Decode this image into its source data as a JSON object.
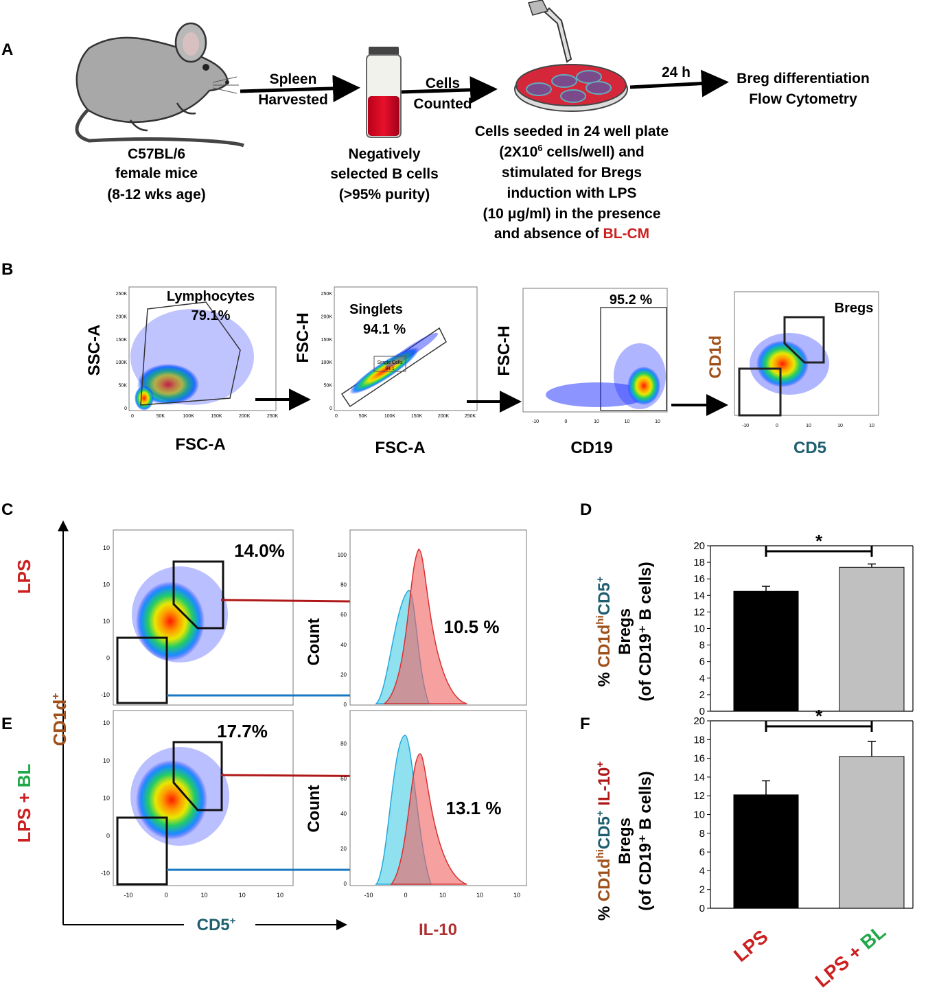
{
  "panels": {
    "A": "A",
    "B": "B",
    "C": "C",
    "D": "D",
    "E": "E",
    "F": "F"
  },
  "panel_a": {
    "mouse_lines": [
      "C57BL/6",
      "female mice",
      "(8-12 wks age)"
    ],
    "arrow1_lines": [
      "Spleen",
      "Harvested"
    ],
    "tube_lines": [
      "Negatively",
      "selected  B cells",
      "(>95% purity)"
    ],
    "arrow2_lines": [
      "Cells",
      "Counted"
    ],
    "dish_lines": [
      "Cells seeded in 24 well plate",
      "(2X10",
      "6",
      " cells/well) and",
      "stimulated for Bregs",
      "induction with LPS",
      "(10 μg/ml) in the presence",
      "and absence of ",
      "BL-CM"
    ],
    "arrow3_label": "24 h",
    "result_lines": [
      "Breg differentiation",
      "Flow Cytometry"
    ]
  },
  "panel_b": {
    "plot1": {
      "ylabel": "SSC-A",
      "xlabel": "FSC-A",
      "gate_name": "Lymphocytes",
      "gate_value": "79.1%",
      "yticks": [
        "250K",
        "200K",
        "150K",
        "100K",
        "50K",
        "0"
      ],
      "xticks": [
        "0",
        "50K",
        "100K",
        "150K",
        "200K",
        "250K"
      ]
    },
    "plot2": {
      "ylabel": "FSC-H",
      "xlabel": "FSC-A",
      "gate_name": "Singlets",
      "gate_value": "94.1 %",
      "inner_label": "Single Cells",
      "inner_value": "94.1",
      "yticks": [
        "250K",
        "200K",
        "150K",
        "100K",
        "50K",
        "0"
      ],
      "xticks": [
        "0",
        "50K",
        "100K",
        "150K",
        "200K",
        "250K"
      ]
    },
    "plot3": {
      "ylabel": "FSC-H",
      "xlabel": "CD19",
      "gate_value": "95.2 %",
      "xticks": [
        "-10",
        "0",
        "10",
        "10",
        "10"
      ]
    },
    "plot4": {
      "ylabel": "CD1d",
      "xlabel": "CD5",
      "gate_name": "Bregs",
      "xticks": [
        "-10",
        "0",
        "10",
        "10",
        "10"
      ]
    }
  },
  "panel_ce": {
    "y_axis_label": "CD1d",
    "y_axis_sup": "+",
    "x_axis_label": "CD5",
    "x_axis_sup": "+",
    "row_c_label": "LPS",
    "row_e_label_lps": "LPS + ",
    "row_e_label_bl": "BL",
    "c_gate_pct": "14.0%",
    "c_hist_pct": "10.5 %",
    "e_gate_pct": "17.7%",
    "e_hist_pct": "13.1 %",
    "hist_ylabel": "Count",
    "hist_xlabel": "IL-10",
    "c_hist_yticks": [
      "100",
      "80",
      "60",
      "40",
      "20",
      "0"
    ],
    "e_hist_yticks": [
      "80",
      "60",
      "40",
      "20",
      "0"
    ],
    "dot_yticks": [
      "10",
      "10",
      "10",
      "0",
      "-10"
    ],
    "dot_xticks": [
      "-10",
      "0",
      "10",
      "10",
      "10"
    ]
  },
  "chart_data": [
    {
      "type": "bar",
      "panel": "D",
      "categories": [
        "LPS",
        "LPS + BL"
      ],
      "values": [
        14.5,
        17.4
      ],
      "errors": [
        0.6,
        0.4
      ],
      "ylim": [
        0,
        20
      ],
      "yticks": [
        "0",
        "2",
        "4",
        "6",
        "8",
        "10",
        "12",
        "14",
        "16",
        "18",
        "20"
      ],
      "ylabel_parts": [
        "% ",
        "CD1d",
        "hi",
        "CD5",
        "+"
      ],
      "ylabel_line2": "Bregs",
      "ylabel_line3": "(of CD19⁺ B cells)",
      "significance": "*",
      "colors": [
        "#000000",
        "#c0c0c0"
      ]
    },
    {
      "type": "bar",
      "panel": "F",
      "categories": [
        "LPS",
        "LPS + BL"
      ],
      "values": [
        12.1,
        16.2
      ],
      "errors": [
        1.5,
        1.6
      ],
      "ylim": [
        0,
        20
      ],
      "yticks": [
        "0",
        "2",
        "4",
        "6",
        "8",
        "10",
        "12",
        "14",
        "16",
        "18",
        "20"
      ],
      "ylabel_parts": [
        "% ",
        "CD1d",
        "hi",
        "CD5",
        "+",
        " IL-10",
        "+"
      ],
      "ylabel_line2": "Bregs",
      "ylabel_line3": "(of CD19⁺ B cells)",
      "significance": "*",
      "colors": [
        "#000000",
        "#c0c0c0"
      ]
    }
  ],
  "x_category_labels": {
    "lps": "LPS",
    "lps_plus": "LPS + ",
    "bl": "BL"
  },
  "colors": {
    "red": "#cc1f1f",
    "brown": "#a0501a",
    "teal": "#1f5f6f",
    "green": "#22a84a",
    "blue_arrow": "#1a78c2",
    "red_arrow": "#b01818"
  }
}
